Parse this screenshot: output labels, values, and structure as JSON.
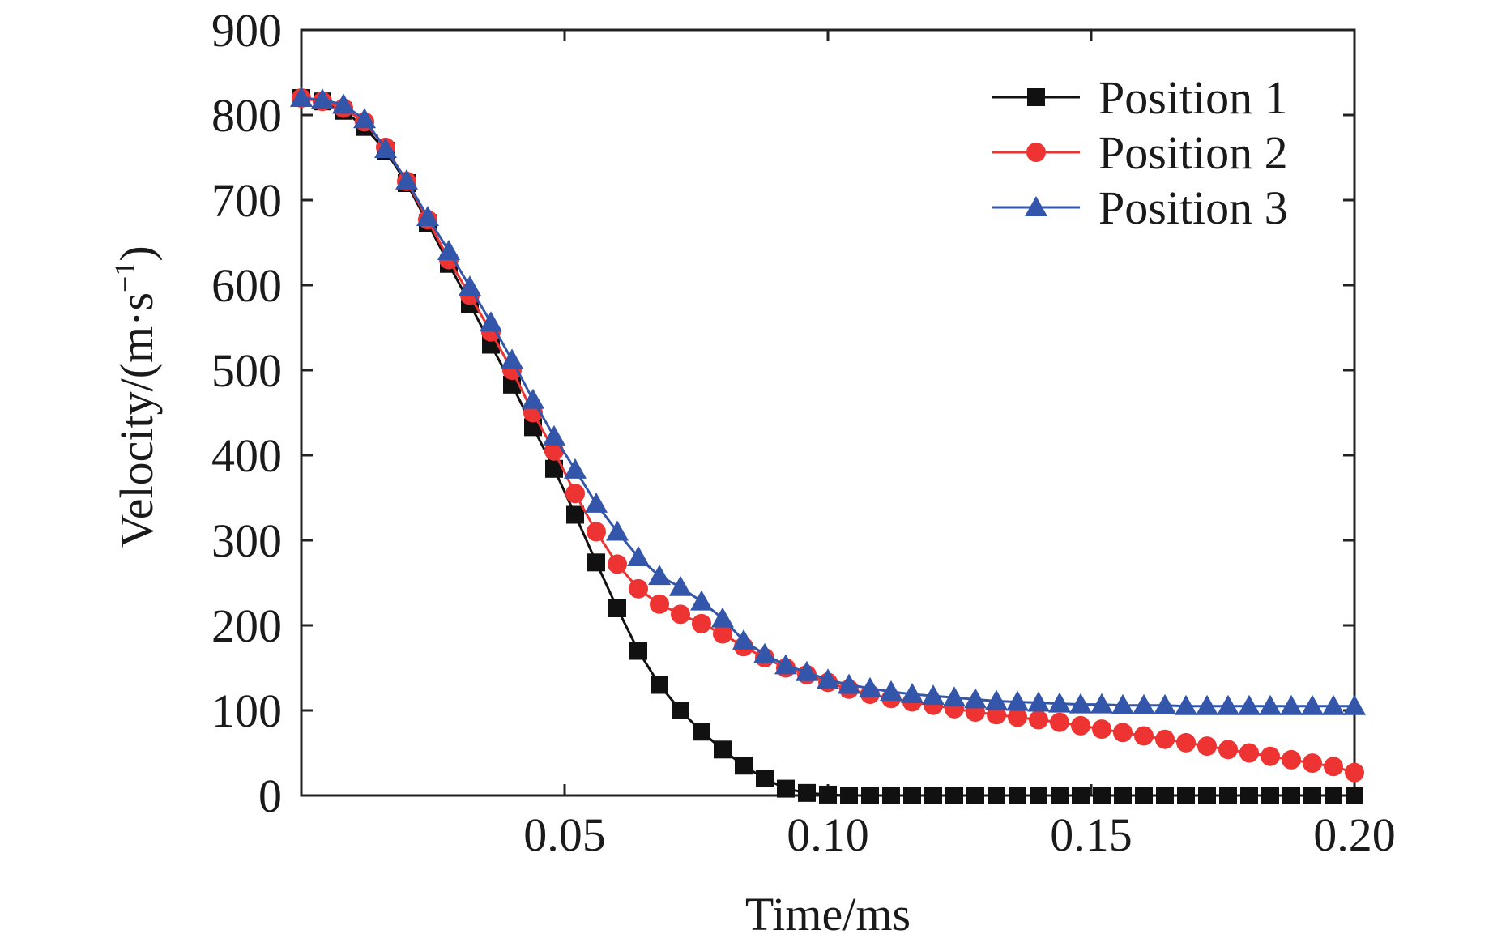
{
  "chart_data": {
    "type": "line",
    "xlabel": "Time/ms",
    "ylabel": "Velocity/(m·s",
    "ylabel_unit_sup": "−1",
    "ylabel_close": ")",
    "xlim": [
      0.0,
      0.2
    ],
    "ylim": [
      0,
      900
    ],
    "xticks": [
      0.05,
      0.1,
      0.15,
      0.2
    ],
    "xtick_labels": [
      "0.05",
      "0.10",
      "0.15",
      "0.20"
    ],
    "yticks": [
      0,
      100,
      200,
      300,
      400,
      500,
      600,
      700,
      800,
      900
    ],
    "ytick_labels": [
      "0",
      "100",
      "200",
      "300",
      "400",
      "500",
      "600",
      "700",
      "800",
      "900"
    ],
    "grid": false,
    "legend_position": "top-right",
    "series": [
      {
        "name": "Position 1",
        "color": "#111111",
        "marker": "square",
        "x": [
          0.0,
          0.004,
          0.008,
          0.012,
          0.016,
          0.02,
          0.024,
          0.028,
          0.032,
          0.036,
          0.04,
          0.044,
          0.048,
          0.052,
          0.056,
          0.06,
          0.064,
          0.068,
          0.072,
          0.076,
          0.08,
          0.084,
          0.088,
          0.092,
          0.096,
          0.1,
          0.104,
          0.108,
          0.112,
          0.116,
          0.12,
          0.124,
          0.128,
          0.132,
          0.136,
          0.14,
          0.144,
          0.148,
          0.152,
          0.156,
          0.16,
          0.164,
          0.168,
          0.172,
          0.176,
          0.18,
          0.184,
          0.188,
          0.192,
          0.196,
          0.2
        ],
        "values": [
          820,
          816,
          805,
          786,
          758,
          720,
          673,
          625,
          578,
          530,
          483,
          433,
          384,
          330,
          274,
          220,
          170,
          130,
          100,
          75,
          54,
          35,
          20,
          8,
          3,
          1,
          0,
          0,
          0,
          0,
          0,
          0,
          0,
          0,
          0,
          0,
          0,
          0,
          0,
          0,
          0,
          0,
          0,
          0,
          0,
          0,
          0,
          0,
          0,
          0,
          0
        ]
      },
      {
        "name": "Position 2",
        "color": "#ee3333",
        "marker": "circle",
        "x": [
          0.0,
          0.004,
          0.008,
          0.012,
          0.016,
          0.02,
          0.024,
          0.028,
          0.032,
          0.036,
          0.04,
          0.044,
          0.048,
          0.052,
          0.056,
          0.06,
          0.064,
          0.068,
          0.072,
          0.076,
          0.08,
          0.084,
          0.088,
          0.092,
          0.096,
          0.1,
          0.104,
          0.108,
          0.112,
          0.116,
          0.12,
          0.124,
          0.128,
          0.132,
          0.136,
          0.14,
          0.144,
          0.148,
          0.152,
          0.156,
          0.16,
          0.164,
          0.168,
          0.172,
          0.176,
          0.18,
          0.184,
          0.188,
          0.192,
          0.196,
          0.2
        ],
        "values": [
          820,
          816,
          808,
          792,
          762,
          722,
          677,
          630,
          588,
          545,
          500,
          450,
          405,
          355,
          310,
          272,
          243,
          225,
          213,
          202,
          190,
          175,
          162,
          150,
          142,
          133,
          125,
          119,
          114,
          110,
          106,
          102,
          98,
          95,
          92,
          89,
          86,
          82,
          78,
          74,
          70,
          66,
          62,
          58,
          54,
          50,
          46,
          42,
          38,
          34,
          27
        ]
      },
      {
        "name": "Position 3",
        "color": "#3355aa",
        "marker": "triangle",
        "x": [
          0.0,
          0.004,
          0.008,
          0.012,
          0.016,
          0.02,
          0.024,
          0.028,
          0.032,
          0.036,
          0.04,
          0.044,
          0.048,
          0.052,
          0.056,
          0.06,
          0.064,
          0.068,
          0.072,
          0.076,
          0.08,
          0.084,
          0.088,
          0.092,
          0.096,
          0.1,
          0.104,
          0.108,
          0.112,
          0.116,
          0.12,
          0.124,
          0.128,
          0.132,
          0.136,
          0.14,
          0.144,
          0.148,
          0.152,
          0.156,
          0.16,
          0.164,
          0.168,
          0.172,
          0.176,
          0.18,
          0.184,
          0.188,
          0.192,
          0.196,
          0.2
        ],
        "values": [
          820,
          818,
          812,
          795,
          760,
          723,
          680,
          640,
          598,
          556,
          512,
          465,
          422,
          383,
          343,
          310,
          280,
          258,
          245,
          228,
          208,
          182,
          166,
          153,
          145,
          136,
          130,
          126,
          122,
          119,
          117,
          115,
          113,
          111,
          110,
          109,
          108,
          107,
          107,
          106,
          106,
          106,
          105,
          105,
          105,
          105,
          105,
          105,
          105,
          105,
          105
        ]
      }
    ]
  }
}
